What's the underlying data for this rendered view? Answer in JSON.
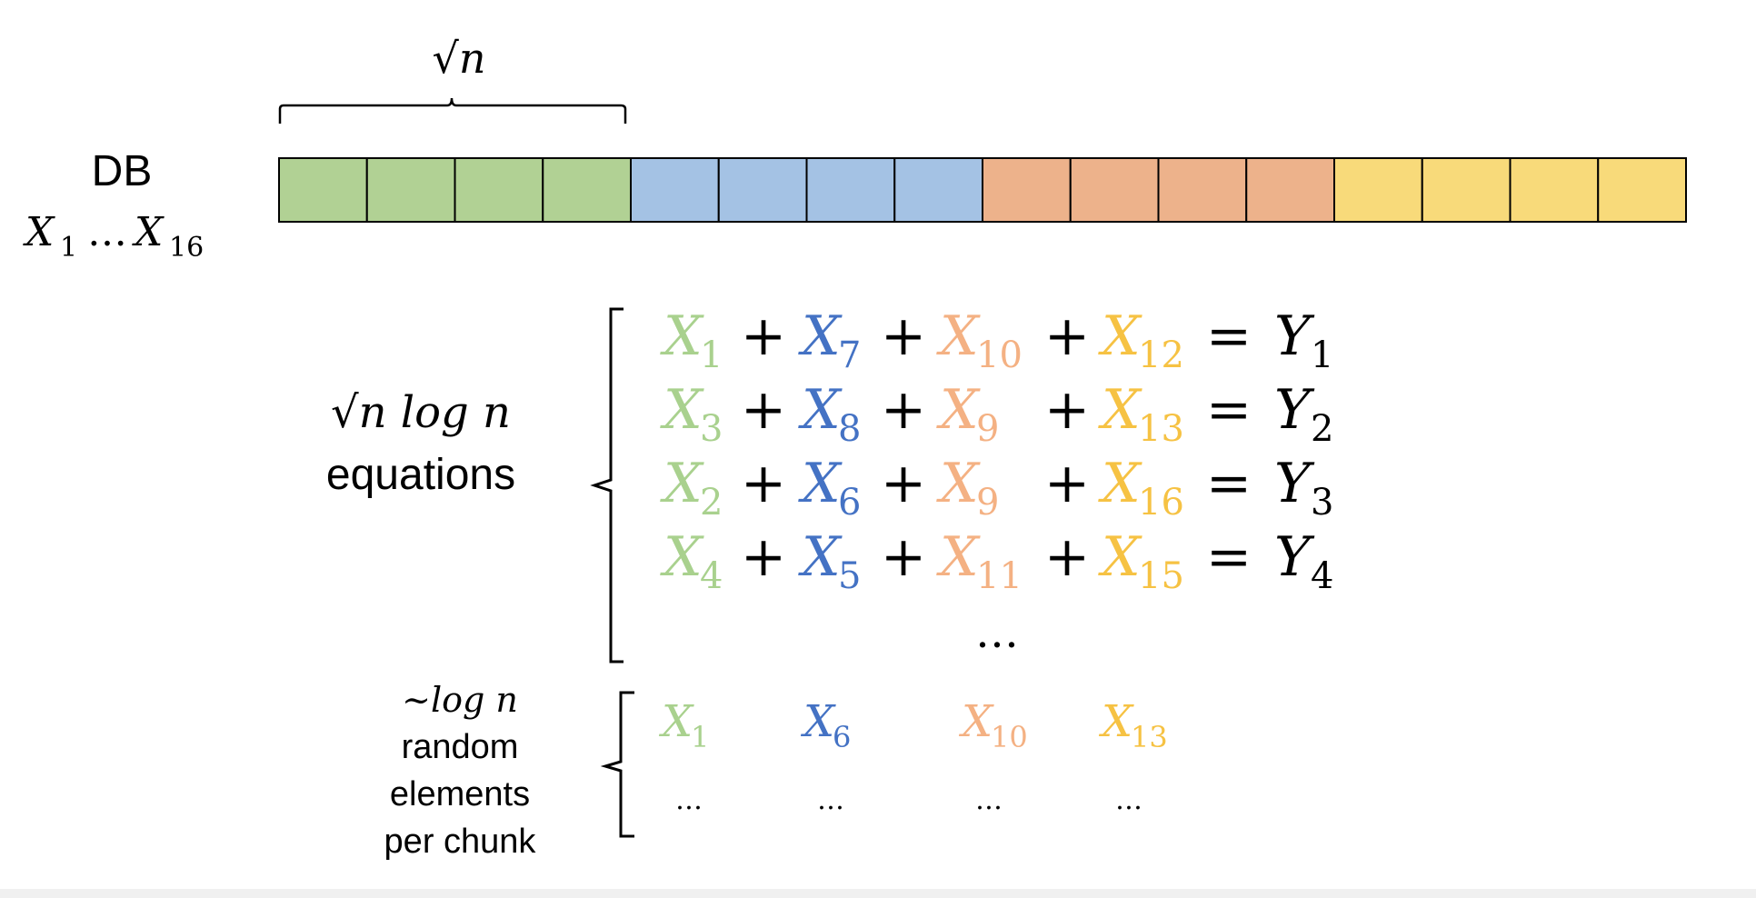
{
  "colors": {
    "green": "#b1d194",
    "blue": "#a4c2e4",
    "orange": "#edb28b",
    "yellow": "#f8da7a",
    "green_text": "#a9d18e",
    "blue_text": "#4472c4",
    "orange_text": "#f4b183",
    "yellow_text": "#f6c243",
    "footer": "#f0f0f0"
  },
  "db": {
    "label": "DB",
    "range_var": "X",
    "range_start": "1",
    "range_ellipsis": "…",
    "range_end": "16",
    "chunk_size_label": "√n",
    "chunk_colors": [
      "green",
      "blue",
      "orange",
      "yellow"
    ],
    "cells_per_chunk": 4
  },
  "equations": {
    "count_label": "√n log n",
    "count_sub": "equations",
    "var": "X",
    "result_var": "Y",
    "plus": "+",
    "equals": "=",
    "rows": [
      {
        "terms": [
          "1",
          "7",
          "10",
          "12"
        ],
        "result": "1"
      },
      {
        "terms": [
          "3",
          "8",
          "9",
          "13"
        ],
        "result": "2"
      },
      {
        "terms": [
          "2",
          "6",
          "9",
          "16"
        ],
        "result": "3"
      },
      {
        "terms": [
          "4",
          "5",
          "11",
          "15"
        ],
        "result": "4"
      }
    ],
    "more": "…"
  },
  "sample": {
    "label_math": "~log n",
    "label_lines": [
      "random",
      "elements",
      "per chunk"
    ],
    "var": "X",
    "elements": [
      "1",
      "6",
      "10",
      "13"
    ],
    "more": [
      "…",
      "…",
      "…",
      "…"
    ]
  }
}
